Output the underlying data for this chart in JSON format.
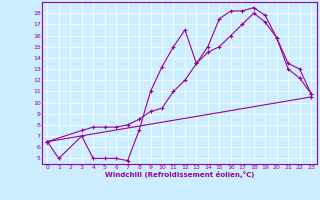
{
  "xlabel": "Windchill (Refroidissement éolien,°C)",
  "bg_color": "#cceeff",
  "line_color": "#990099",
  "xlim": [
    -0.5,
    23.5
  ],
  "ylim": [
    4.5,
    19.0
  ],
  "xticks": [
    0,
    1,
    2,
    3,
    4,
    5,
    6,
    7,
    8,
    9,
    10,
    11,
    12,
    13,
    14,
    15,
    16,
    17,
    18,
    19,
    20,
    21,
    22,
    23
  ],
  "yticks": [
    5,
    6,
    7,
    8,
    9,
    10,
    11,
    12,
    13,
    14,
    15,
    16,
    17,
    18
  ],
  "curve1_x": [
    0,
    1,
    3,
    4,
    5,
    6,
    7,
    8,
    9,
    10,
    11,
    12,
    13,
    14,
    15,
    16,
    17,
    18,
    19,
    20,
    21,
    22,
    23
  ],
  "curve1_y": [
    6.5,
    5.0,
    7.0,
    5.0,
    5.0,
    5.0,
    4.8,
    7.5,
    11.0,
    13.2,
    15.0,
    16.5,
    13.5,
    15.0,
    17.5,
    18.2,
    18.2,
    18.5,
    17.8,
    15.8,
    13.0,
    12.2,
    10.8
  ],
  "curve2_x": [
    0,
    3,
    4,
    5,
    6,
    7,
    8,
    9,
    10,
    11,
    12,
    13,
    14,
    15,
    16,
    17,
    18,
    19,
    20,
    21,
    22,
    23
  ],
  "curve2_y": [
    6.5,
    7.5,
    7.8,
    7.8,
    7.8,
    8.0,
    8.5,
    9.2,
    9.5,
    11.0,
    12.0,
    13.5,
    14.5,
    15.0,
    16.0,
    17.0,
    18.0,
    17.2,
    15.8,
    13.5,
    13.0,
    10.8
  ],
  "curve3_x": [
    0,
    23
  ],
  "curve3_y": [
    6.5,
    10.5
  ]
}
